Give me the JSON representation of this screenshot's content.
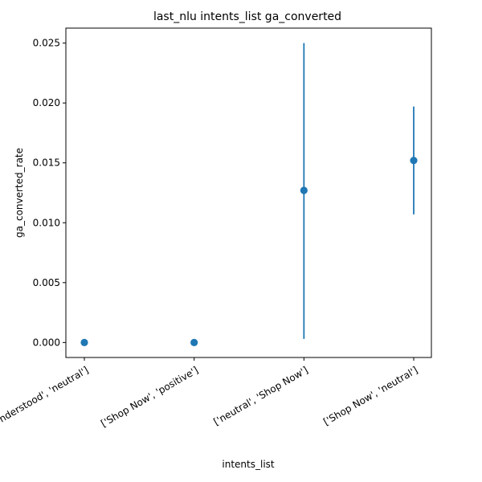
{
  "chart_data": {
    "type": "scatter",
    "title": "last_nlu intents_list ga_converted",
    "xlabel": "intents_list",
    "ylabel": "ga_converted_rate",
    "categories": [
      "['Not Understood', 'neutral']",
      "['Shop Now', 'positive']",
      "['neutral', 'Shop Now']",
      "['Shop Now', 'neutral']"
    ],
    "values": [
      0.0,
      0.0,
      0.0127,
      0.0152
    ],
    "error_low": [
      0.0,
      0.0,
      0.0003,
      0.0107
    ],
    "error_high": [
      0.0,
      0.0,
      0.025,
      0.0197
    ],
    "ylim": [
      -0.00125,
      0.02625
    ],
    "yticks": [
      0.0,
      0.005,
      0.01,
      0.015,
      0.02,
      0.025
    ],
    "ytick_labels": [
      "0.000",
      "0.005",
      "0.010",
      "0.015",
      "0.020",
      "0.025"
    ],
    "grid": false,
    "colors": {
      "marker": "#1f77b4",
      "axis": "#000000"
    }
  }
}
